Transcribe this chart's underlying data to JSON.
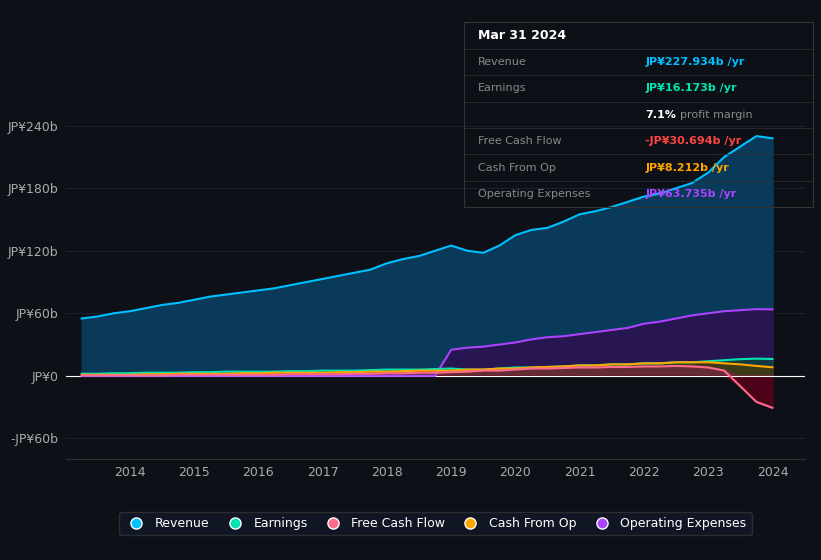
{
  "background_color": "#0d1117",
  "plot_bg_color": "#0d1117",
  "grid_color": "#1e2a3a",
  "title_date": "Mar 31 2024",
  "years": [
    2013.25,
    2013.5,
    2013.75,
    2014.0,
    2014.25,
    2014.5,
    2014.75,
    2015.0,
    2015.25,
    2015.5,
    2015.75,
    2016.0,
    2016.25,
    2016.5,
    2016.75,
    2017.0,
    2017.25,
    2017.5,
    2017.75,
    2018.0,
    2018.25,
    2018.5,
    2018.75,
    2019.0,
    2019.25,
    2019.5,
    2019.75,
    2020.0,
    2020.25,
    2020.5,
    2020.75,
    2021.0,
    2021.25,
    2021.5,
    2021.75,
    2022.0,
    2022.25,
    2022.5,
    2022.75,
    2023.0,
    2023.25,
    2023.5,
    2023.75,
    2024.0
  ],
  "revenue": [
    55,
    57,
    60,
    62,
    65,
    68,
    70,
    73,
    76,
    78,
    80,
    82,
    84,
    87,
    90,
    93,
    96,
    99,
    102,
    108,
    112,
    115,
    120,
    125,
    120,
    118,
    125,
    135,
    140,
    142,
    148,
    155,
    158,
    162,
    167,
    172,
    175,
    180,
    185,
    195,
    210,
    220,
    230,
    227.934
  ],
  "earnings": [
    2,
    2,
    2.5,
    2.5,
    3,
    3,
    3,
    3.5,
    3.5,
    4,
    4,
    4,
    4,
    4.5,
    4.5,
    5,
    5,
    5,
    5.5,
    6,
    6,
    6,
    6.5,
    7,
    6,
    6,
    7,
    8,
    8,
    8.5,
    9,
    10,
    10,
    11,
    11,
    12,
    12,
    13,
    13,
    14,
    15,
    16,
    16.5,
    16.173
  ],
  "free_cash_flow": [
    0.5,
    0.5,
    0.5,
    0.5,
    0.5,
    0.5,
    1,
    1,
    1,
    1,
    1,
    1,
    1,
    1.5,
    1.5,
    1.5,
    1.5,
    2,
    2,
    2.5,
    2.5,
    3,
    3,
    3.5,
    4,
    5,
    5,
    6,
    7,
    7,
    7.5,
    8,
    8,
    8.5,
    8.5,
    9,
    9,
    9.5,
    9,
    8,
    5,
    -10,
    -25,
    -30.694
  ],
  "cash_from_op": [
    1,
    1,
    1,
    1,
    1.5,
    1.5,
    2,
    2,
    2,
    2,
    2.5,
    2.5,
    3,
    3,
    3,
    3,
    3.5,
    3.5,
    4,
    4,
    4.5,
    5,
    5,
    5,
    6,
    6,
    7,
    7,
    8,
    8.5,
    9,
    10,
    10,
    11,
    11,
    12,
    12,
    13,
    13,
    13,
    12,
    11,
    9.5,
    8.212
  ],
  "operating_expenses": [
    0,
    0,
    0,
    0,
    0,
    0,
    0,
    0,
    0,
    0,
    0,
    0,
    0,
    0,
    0,
    0,
    0,
    0,
    0,
    0,
    0,
    0,
    0,
    25,
    27,
    28,
    30,
    32,
    35,
    37,
    38,
    40,
    42,
    44,
    46,
    50,
    52,
    55,
    58,
    60,
    62,
    63,
    64,
    63.735
  ],
  "ylim": [
    -80,
    280
  ],
  "yticks": [
    -60,
    0,
    60,
    120,
    180,
    240
  ],
  "ytick_labels": [
    "-JP¥60b",
    "JP¥0",
    "JP¥60b",
    "JP¥120b",
    "JP¥180b",
    "JP¥240b"
  ],
  "xlim": [
    2013.0,
    2024.5
  ],
  "xticks": [
    2014,
    2015,
    2016,
    2017,
    2018,
    2019,
    2020,
    2021,
    2022,
    2023,
    2024
  ],
  "legend": [
    {
      "label": "Revenue",
      "color": "#00bfff"
    },
    {
      "label": "Earnings",
      "color": "#00e5b0"
    },
    {
      "label": "Free Cash Flow",
      "color": "#ff6b8a"
    },
    {
      "label": "Cash From Op",
      "color": "#ffa500"
    },
    {
      "label": "Operating Expenses",
      "color": "#aa44ff"
    }
  ],
  "revenue_color": "#00bfff",
  "earnings_color": "#00e5b0",
  "free_cash_flow_color": "#ff6b8a",
  "cash_from_op_color": "#ffa500",
  "operating_expenses_color": "#aa44ff",
  "tooltip_rows": [
    {
      "label": "Mar 31 2024",
      "value": "",
      "label_color": "#ffffff",
      "value_color": "#ffffff",
      "is_title": true
    },
    {
      "label": "Revenue",
      "value": "JP¥227.934b /yr",
      "label_color": "#888888",
      "value_color": "#00bfff",
      "is_title": false
    },
    {
      "label": "Earnings",
      "value": "JP¥16.173b /yr",
      "label_color": "#888888",
      "value_color": "#00e5b0",
      "is_title": false
    },
    {
      "label": "",
      "value": "7.1% profit margin",
      "label_color": "#888888",
      "value_color": "#ffffff",
      "is_title": false,
      "is_margin": true
    },
    {
      "label": "Free Cash Flow",
      "value": "-JP¥30.694b /yr",
      "label_color": "#888888",
      "value_color": "#ff4444",
      "is_title": false
    },
    {
      "label": "Cash From Op",
      "value": "JP¥8.212b /yr",
      "label_color": "#888888",
      "value_color": "#ffa500",
      "is_title": false
    },
    {
      "label": "Operating Expenses",
      "value": "JP¥63.735b /yr",
      "label_color": "#888888",
      "value_color": "#aa44ff",
      "is_title": false
    }
  ]
}
